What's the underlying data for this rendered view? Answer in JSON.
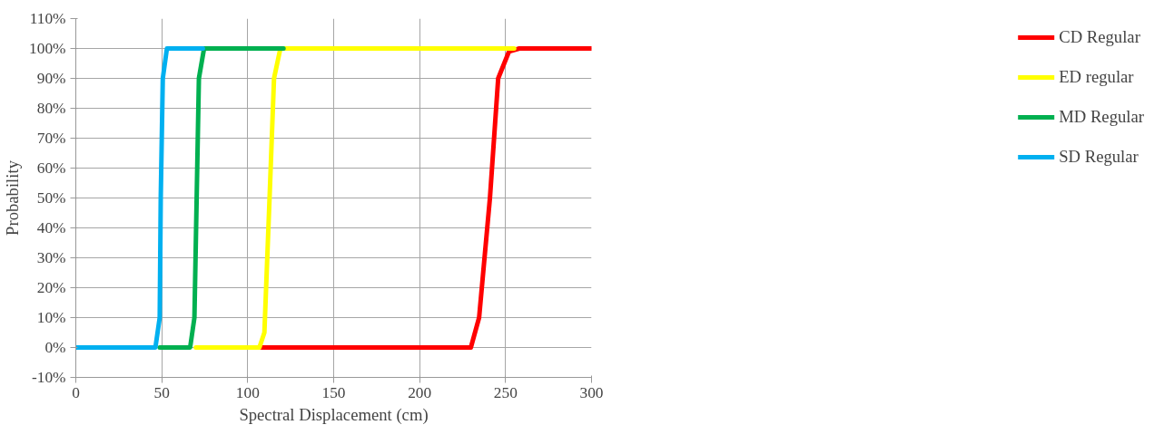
{
  "chart_data": {
    "type": "line",
    "xlabel": "Spectral Displacement (cm)",
    "ylabel": "Probability",
    "xlim": [
      0,
      300
    ],
    "xticks": [
      0,
      50,
      100,
      150,
      200,
      250,
      300
    ],
    "ylim": [
      -10,
      110
    ],
    "yticks": [
      {
        "value": -10,
        "label": "-10%"
      },
      {
        "value": 0,
        "label": "0%"
      },
      {
        "value": 10,
        "label": "10%"
      },
      {
        "value": 20,
        "label": "20%"
      },
      {
        "value": 30,
        "label": "30%"
      },
      {
        "value": 40,
        "label": "40%"
      },
      {
        "value": 50,
        "label": "50%"
      },
      {
        "value": 60,
        "label": "60%"
      },
      {
        "value": 70,
        "label": "70%"
      },
      {
        "value": 80,
        "label": "80%"
      },
      {
        "value": 90,
        "label": "90%"
      },
      {
        "value": 100,
        "label": "100%"
      },
      {
        "value": 110,
        "label": "110%"
      }
    ],
    "grid": true,
    "legend": "right",
    "marker": "none",
    "line_style": "solid",
    "series": [
      {
        "name": "CD Regular",
        "color": "#ff0000",
        "x": [
          108,
          229.8,
          234.6,
          240.9,
          245.7,
          252,
          258,
          300
        ],
        "values": [
          0,
          0,
          10,
          50,
          90,
          99,
          100,
          100
        ]
      },
      {
        "name": "ED regular",
        "color": "#ffff00",
        "x": [
          69.8,
          106.8,
          109.7,
          112.7,
          115.3,
          119,
          255
        ],
        "values": [
          0,
          0,
          5,
          50,
          90,
          100,
          100
        ]
      },
      {
        "name": "MD Regular",
        "color": "#00b050",
        "x": [
          48.8,
          66.5,
          69,
          70.3,
          71.6,
          74.6,
          120.8
        ],
        "values": [
          0,
          0,
          10,
          50,
          90,
          100,
          100
        ]
      },
      {
        "name": "SD Regular",
        "color": "#00b0f0",
        "x": [
          0,
          46.3,
          48.8,
          49.4,
          50.6,
          53,
          73.9
        ],
        "values": [
          0,
          0,
          10,
          50,
          90,
          100,
          100
        ]
      }
    ]
  }
}
